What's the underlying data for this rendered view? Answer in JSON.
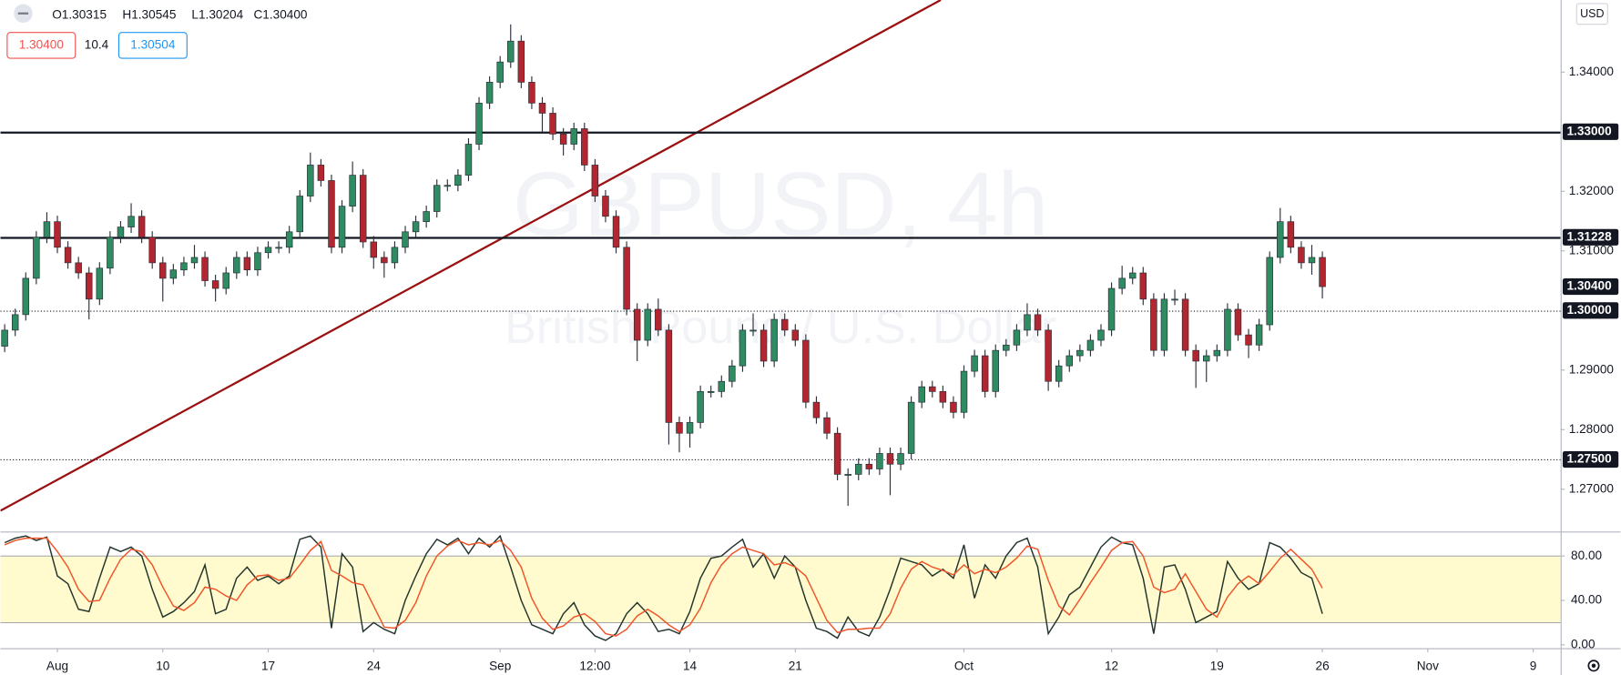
{
  "header": {
    "ohlc": [
      "O1.30315",
      "H1.30545",
      "L1.30204",
      "C1.30400"
    ],
    "sell": "1.30400",
    "spread": "10.4",
    "buy": "1.30504"
  },
  "chart_data": [
    {
      "type": "candlestick",
      "watermark_symbol": "GBPUSD, 4h",
      "watermark_description": "British Pound / U.S. Dollar",
      "currency": "USD",
      "up_color": "#2e8b62",
      "down_color": "#b3262f",
      "xlim": [
        -2.7,
        71.3
      ],
      "ylim": [
        1.2629,
        1.3521
      ],
      "xticks": [
        {
          "value": 0,
          "label": "Aug"
        },
        {
          "value": 5,
          "label": "10"
        },
        {
          "value": 10,
          "label": "17"
        },
        {
          "value": 15,
          "label": "24"
        },
        {
          "value": 21,
          "label": "Sep"
        },
        {
          "value": 25.5,
          "label": "12:00"
        },
        {
          "value": 30,
          "label": "14"
        },
        {
          "value": 35,
          "label": "21"
        },
        {
          "value": 43,
          "label": "Oct"
        },
        {
          "value": 50,
          "label": "12"
        },
        {
          "value": 55,
          "label": "19"
        },
        {
          "value": 60,
          "label": "26"
        },
        {
          "value": 65,
          "label": "Nov"
        },
        {
          "value": 70,
          "label": "9"
        }
      ],
      "yticks": [
        {
          "value": 1.34,
          "label": "1.34000"
        },
        {
          "value": 1.32,
          "label": "1.32000"
        },
        {
          "value": 1.31,
          "label": "1.31000"
        },
        {
          "value": 1.29,
          "label": "1.29000"
        },
        {
          "value": 1.28,
          "label": "1.28000"
        },
        {
          "value": 1.27,
          "label": "1.27000"
        }
      ],
      "hlines": [
        {
          "value": 1.33,
          "label": "1.33000",
          "style": "solid"
        },
        {
          "value": 1.31228,
          "label": "1.31228",
          "style": "solid"
        },
        {
          "value": 1.3,
          "label": "1.30000",
          "style": "dotted"
        },
        {
          "value": 1.275,
          "label": "1.27500",
          "style": "dotted"
        }
      ],
      "last_price": {
        "value": 1.304,
        "label": "1.30400"
      },
      "trendline": {
        "x": [
          -2.7,
          41.9
        ],
        "y": [
          1.2664,
          1.3521
        ],
        "color": "#9b1111"
      },
      "x": [
        -2.5,
        -2,
        -1.5,
        -1,
        -0.5,
        0,
        0.5,
        1,
        1.5,
        2,
        2.5,
        3,
        3.5,
        4,
        4.5,
        5,
        5.5,
        6,
        6.5,
        7,
        7.5,
        8,
        8.5,
        9,
        9.5,
        10,
        10.5,
        11,
        11.5,
        12,
        12.5,
        13,
        13.5,
        14,
        14.5,
        15,
        15.5,
        16,
        16.5,
        17,
        17.5,
        18,
        18.5,
        19,
        19.5,
        20,
        20.5,
        21,
        21.5,
        22,
        22.5,
        23,
        23.5,
        24,
        24.5,
        25,
        25.5,
        26,
        26.5,
        27,
        27.5,
        28,
        28.5,
        29,
        29.5,
        30,
        30.5,
        31,
        31.5,
        32,
        32.5,
        33,
        33.5,
        34,
        34.5,
        35,
        35.5,
        36,
        36.5,
        37,
        37.5,
        38,
        38.5,
        39,
        39.5,
        40,
        40.5,
        41,
        41.5,
        42,
        42.5,
        43,
        43.5,
        44,
        44.5,
        45,
        45.5,
        46,
        46.5,
        47,
        47.5,
        48,
        48.5,
        49,
        49.5,
        50,
        50.5,
        51,
        51.5,
        52,
        52.5,
        53,
        53.5,
        54,
        54.5,
        55,
        55.5,
        56,
        56.5,
        57,
        57.5,
        58,
        58.5,
        59,
        59.5,
        60
      ],
      "open": [
        1.294,
        1.2967,
        1.2993,
        1.3054,
        1.3123,
        1.3149,
        1.3106,
        1.308,
        1.3063,
        1.3019,
        1.3071,
        1.3123,
        1.314,
        1.3158,
        1.3123,
        1.308,
        1.3054,
        1.3068,
        1.308,
        1.3089,
        1.305,
        1.3037,
        1.3063,
        1.3089,
        1.3068,
        1.3097,
        1.3106,
        1.3106,
        1.3132,
        1.3192,
        1.3244,
        1.3218,
        1.3106,
        1.3175,
        1.3227,
        1.3115,
        1.3089,
        1.308,
        1.3106,
        1.3132,
        1.3149,
        1.3166,
        1.321,
        1.321,
        1.3227,
        1.3279,
        1.3348,
        1.3383,
        1.3417,
        1.3452,
        1.3383,
        1.3348,
        1.3331,
        1.3296,
        1.3279,
        1.3305,
        1.3244,
        1.3192,
        1.3158,
        1.3106,
        1.3002,
        1.295,
        1.3002,
        1.2967,
        1.2812,
        1.2794,
        1.2812,
        1.2864,
        1.2864,
        1.2881,
        1.2907,
        1.2967,
        1.2967,
        1.2915,
        1.2985,
        1.2967,
        1.295,
        1.2846,
        1.282,
        1.2794,
        1.2725,
        1.2725,
        1.2742,
        1.2734,
        1.276,
        1.2742,
        1.276,
        1.2846,
        1.2872,
        1.2864,
        1.2846,
        1.2829,
        1.2898,
        1.2924,
        1.2864,
        1.2933,
        1.2942,
        1.2967,
        1.2993,
        1.2967,
        1.2881,
        1.2907,
        1.2924,
        1.2933,
        1.295,
        1.2967,
        1.3037,
        1.3054,
        1.3063,
        1.3019,
        1.2933,
        1.3019,
        1.3019,
        1.2933,
        1.2915,
        1.2924,
        1.2933,
        1.3002,
        1.2959,
        1.2942,
        1.2976,
        1.3089,
        1.3149,
        1.3106,
        1.308,
        1.3089
      ],
      "high": [
        1.2977,
        1.3003,
        1.3064,
        1.3133,
        1.3165,
        1.3159,
        1.3116,
        1.309,
        1.3073,
        1.3081,
        1.3133,
        1.315,
        1.318,
        1.3168,
        1.3133,
        1.309,
        1.3078,
        1.309,
        1.311,
        1.3099,
        1.306,
        1.3073,
        1.3099,
        1.3099,
        1.3107,
        1.3116,
        1.3116,
        1.3142,
        1.3202,
        1.3265,
        1.3254,
        1.3228,
        1.3185,
        1.325,
        1.3237,
        1.3125,
        1.3099,
        1.3116,
        1.3142,
        1.3159,
        1.3176,
        1.322,
        1.322,
        1.3237,
        1.3289,
        1.3358,
        1.3393,
        1.3427,
        1.348,
        1.3462,
        1.3393,
        1.3358,
        1.3341,
        1.3306,
        1.3315,
        1.3315,
        1.3254,
        1.3202,
        1.3168,
        1.3116,
        1.3012,
        1.3012,
        1.302,
        1.2977,
        1.2822,
        1.2822,
        1.2874,
        1.2874,
        1.2891,
        1.2917,
        1.2977,
        1.2995,
        1.2977,
        1.2995,
        1.2995,
        1.2977,
        1.296,
        1.2856,
        1.283,
        1.2804,
        1.2735,
        1.2752,
        1.2752,
        1.277,
        1.277,
        1.277,
        1.2856,
        1.2882,
        1.2882,
        1.2874,
        1.2856,
        1.2908,
        1.2934,
        1.2934,
        1.2943,
        1.2952,
        1.2977,
        1.3012,
        1.3003,
        1.2977,
        1.2917,
        1.2934,
        1.2943,
        1.296,
        1.2977,
        1.3047,
        1.3075,
        1.3073,
        1.3073,
        1.3029,
        1.3029,
        1.3035,
        1.3029,
        1.2943,
        1.2934,
        1.2943,
        1.3012,
        1.3012,
        1.2969,
        1.2986,
        1.3099,
        1.3172,
        1.3159,
        1.3116,
        1.311,
        1.3099
      ],
      "low": [
        1.293,
        1.2957,
        1.2983,
        1.3044,
        1.3113,
        1.3096,
        1.307,
        1.3053,
        1.2985,
        1.3009,
        1.3061,
        1.3113,
        1.313,
        1.3113,
        1.307,
        1.3015,
        1.3044,
        1.3058,
        1.307,
        1.304,
        1.3015,
        1.3027,
        1.3053,
        1.3058,
        1.3058,
        1.3087,
        1.3096,
        1.3096,
        1.3122,
        1.3182,
        1.3208,
        1.3096,
        1.3096,
        1.3165,
        1.3105,
        1.307,
        1.3055,
        1.307,
        1.3096,
        1.3122,
        1.3139,
        1.3156,
        1.32,
        1.32,
        1.3217,
        1.3269,
        1.3338,
        1.3373,
        1.3407,
        1.3373,
        1.3338,
        1.33,
        1.3286,
        1.326,
        1.3269,
        1.3234,
        1.3182,
        1.3148,
        1.3096,
        1.2992,
        1.2915,
        1.294,
        1.2957,
        1.2775,
        1.2762,
        1.277,
        1.2802,
        1.2854,
        1.2854,
        1.2871,
        1.2897,
        1.2957,
        1.2905,
        1.2905,
        1.2957,
        1.294,
        1.2836,
        1.281,
        1.2784,
        1.2715,
        1.2672,
        1.2715,
        1.2724,
        1.2724,
        1.269,
        1.2732,
        1.275,
        1.2836,
        1.2854,
        1.2836,
        1.2819,
        1.2819,
        1.2888,
        1.2854,
        1.2854,
        1.2923,
        1.2932,
        1.2957,
        1.2957,
        1.2865,
        1.2871,
        1.2897,
        1.2914,
        1.2923,
        1.294,
        1.2957,
        1.3027,
        1.3044,
        1.3009,
        1.2923,
        1.2923,
        1.3009,
        1.2923,
        1.287,
        1.288,
        1.2914,
        1.2923,
        1.2949,
        1.292,
        1.2932,
        1.2966,
        1.3079,
        1.3096,
        1.307,
        1.306,
        1.302
      ],
      "close": [
        1.2967,
        1.2993,
        1.3054,
        1.3123,
        1.3149,
        1.3106,
        1.308,
        1.3063,
        1.3019,
        1.3071,
        1.3123,
        1.314,
        1.3158,
        1.3123,
        1.308,
        1.3054,
        1.3068,
        1.308,
        1.3089,
        1.305,
        1.3037,
        1.3063,
        1.3089,
        1.3068,
        1.3097,
        1.3106,
        1.3106,
        1.3132,
        1.3192,
        1.3244,
        1.3218,
        1.3106,
        1.3175,
        1.3227,
        1.3115,
        1.3089,
        1.308,
        1.3106,
        1.3132,
        1.3149,
        1.3166,
        1.321,
        1.321,
        1.3227,
        1.3279,
        1.3348,
        1.3383,
        1.3417,
        1.3452,
        1.3383,
        1.3348,
        1.3331,
        1.3296,
        1.3279,
        1.3305,
        1.3244,
        1.3192,
        1.3158,
        1.3106,
        1.3002,
        1.295,
        1.3002,
        1.2967,
        1.2812,
        1.2794,
        1.2812,
        1.2864,
        1.2864,
        1.2881,
        1.2907,
        1.2967,
        1.2967,
        1.2915,
        1.2985,
        1.2967,
        1.295,
        1.2846,
        1.282,
        1.2794,
        1.2725,
        1.2725,
        1.2742,
        1.2734,
        1.276,
        1.2742,
        1.276,
        1.2846,
        1.2872,
        1.2864,
        1.2846,
        1.2829,
        1.2898,
        1.2924,
        1.2864,
        1.2933,
        1.2942,
        1.2967,
        1.2993,
        1.2967,
        1.2881,
        1.2907,
        1.2924,
        1.2933,
        1.295,
        1.2967,
        1.3037,
        1.3054,
        1.3063,
        1.3019,
        1.2933,
        1.3019,
        1.3019,
        1.2933,
        1.2915,
        1.2924,
        1.2933,
        1.3002,
        1.2959,
        1.2942,
        1.2976,
        1.3089,
        1.3149,
        1.3106,
        1.308,
        1.3089,
        1.304
      ]
    },
    {
      "type": "line",
      "ylim": [
        -3,
        102
      ],
      "yticks": [
        {
          "value": 80,
          "label": "80.00"
        },
        {
          "value": 40,
          "label": "40.00"
        },
        {
          "value": 0,
          "label": "0.00"
        }
      ],
      "band": [
        20,
        80
      ],
      "band_color": "#fffbcf",
      "series": [
        {
          "color": "#24352c",
          "values": [
            92,
            96,
            98,
            94,
            97,
            62,
            55,
            32,
            30,
            60,
            88,
            84,
            88,
            80,
            50,
            25,
            30,
            38,
            48,
            72,
            28,
            32,
            60,
            70,
            58,
            62,
            55,
            62,
            95,
            98,
            88,
            15,
            82,
            70,
            12,
            20,
            14,
            10,
            40,
            62,
            82,
            95,
            90,
            96,
            82,
            96,
            88,
            98,
            70,
            40,
            18,
            14,
            10,
            28,
            38,
            18,
            8,
            4,
            10,
            28,
            38,
            28,
            12,
            14,
            10,
            30,
            60,
            78,
            80,
            88,
            95,
            70,
            82,
            60,
            80,
            70,
            40,
            15,
            12,
            6,
            25,
            12,
            8,
            25,
            50,
            78,
            75,
            72,
            62,
            68,
            60,
            90,
            42,
            72,
            60,
            80,
            92,
            96,
            70,
            10,
            25,
            45,
            52,
            70,
            88,
            97,
            92,
            90,
            60,
            10,
            70,
            72,
            50,
            20,
            25,
            30,
            75,
            60,
            50,
            55,
            92,
            88,
            78,
            65,
            60,
            28
          ]
        },
        {
          "color": "#f0552a",
          "values": [
            90,
            94,
            96,
            96,
            96,
            84,
            70,
            50,
            39,
            40,
            60,
            77,
            86,
            84,
            72,
            52,
            35,
            31,
            38,
            52,
            50,
            44,
            40,
            54,
            62,
            63,
            58,
            60,
            72,
            85,
            93,
            67,
            62,
            56,
            54,
            35,
            16,
            15,
            22,
            38,
            62,
            80,
            89,
            94,
            90,
            92,
            90,
            94,
            85,
            70,
            42,
            24,
            14,
            17,
            25,
            28,
            21,
            10,
            8,
            14,
            26,
            32,
            26,
            18,
            12,
            18,
            33,
            56,
            72,
            82,
            88,
            85,
            82,
            72,
            74,
            70,
            62,
            42,
            22,
            11,
            14,
            14,
            15,
            15,
            28,
            51,
            68,
            75,
            70,
            67,
            63,
            72,
            64,
            68,
            65,
            70,
            78,
            89,
            86,
            58,
            35,
            27,
            41,
            56,
            70,
            85,
            92,
            93,
            80,
            52,
            47,
            50,
            64,
            48,
            32,
            25,
            43,
            55,
            62,
            55,
            66,
            78,
            86,
            77,
            68,
            51
          ]
        }
      ]
    }
  ]
}
